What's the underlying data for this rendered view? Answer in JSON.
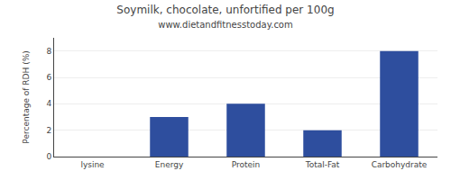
{
  "chart_data": {
    "type": "bar",
    "title": "Soymilk, chocolate, unfortified per 100g",
    "subtitle": "www.dietandfitnesstoday.com",
    "categories": [
      "lysine",
      "Energy",
      "Protein",
      "Total-Fat",
      "Carbohydrate"
    ],
    "values": [
      0,
      3,
      4,
      2,
      8
    ],
    "color": "#2e4e9e",
    "ylabel": "Percentage of RDH (%)",
    "ylim": [
      0,
      9
    ],
    "yticks": [
      0,
      2,
      4,
      6,
      8
    ],
    "grid": true
  }
}
